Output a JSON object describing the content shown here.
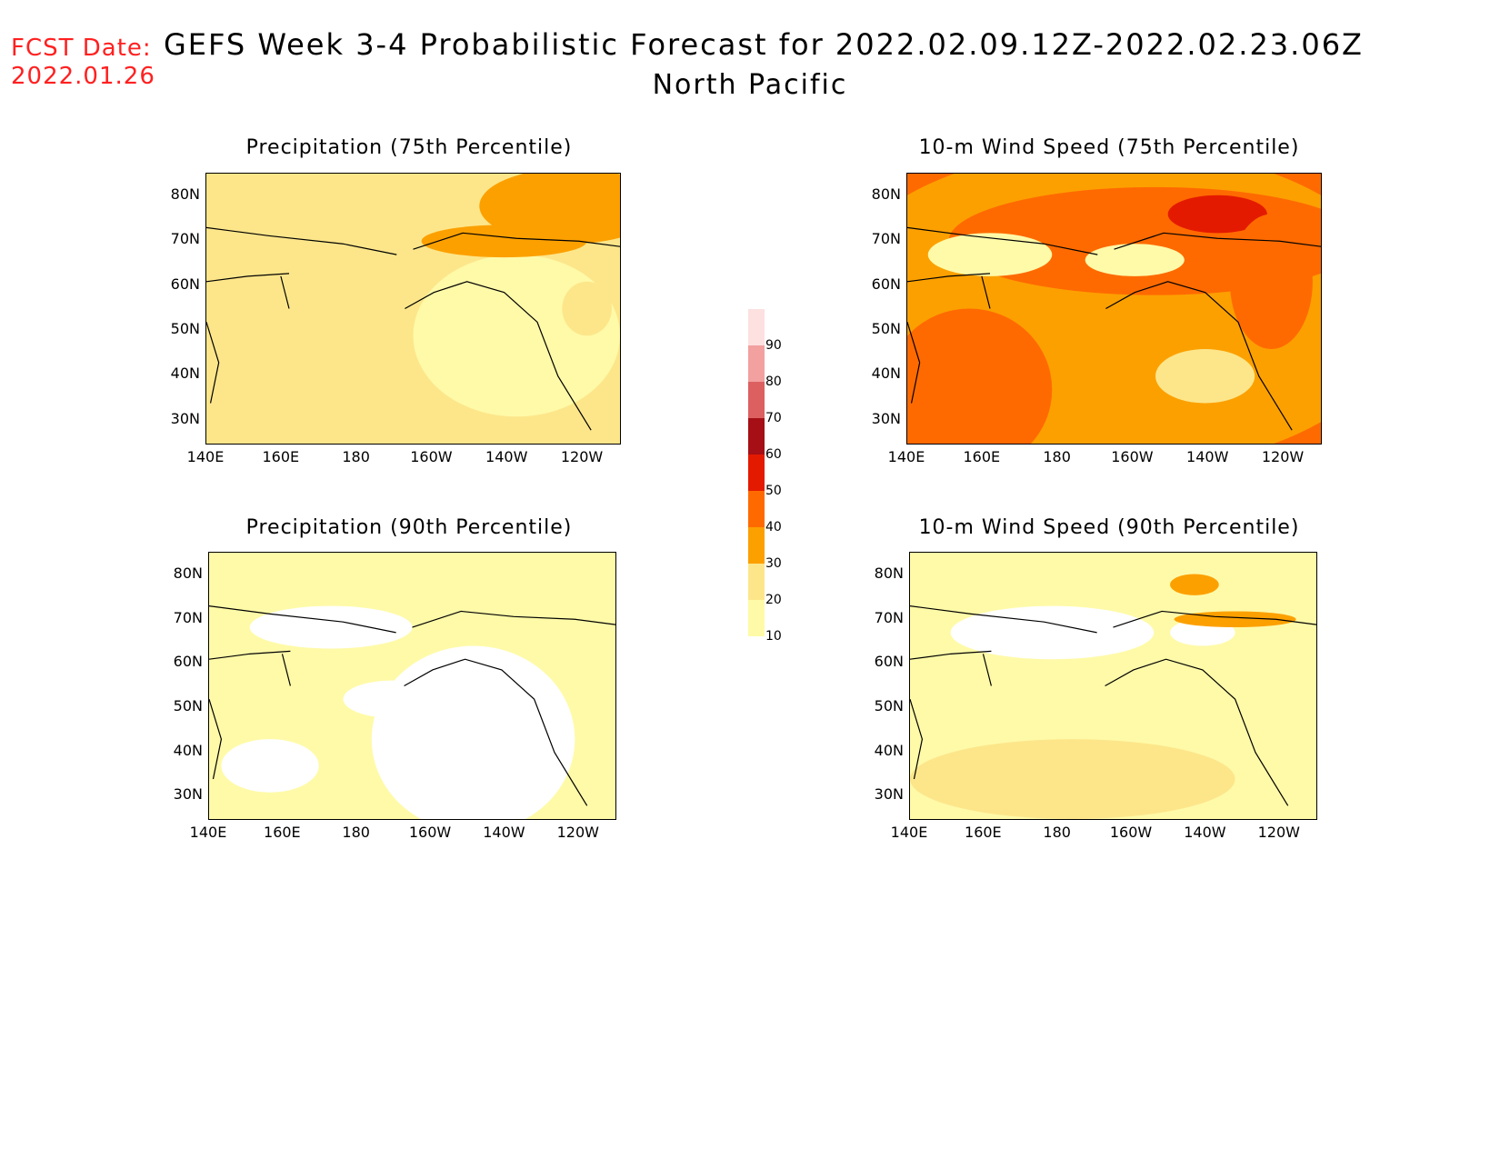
{
  "header": {
    "fcst_label": "FCST Date:",
    "fcst_date": "2022.01.26",
    "title": "GEFS Week 3-4 Probabilistic Forecast for 2022.02.09.12Z-2022.02.23.06Z",
    "subtitle": "North Pacific"
  },
  "panels": [
    {
      "id": "p75",
      "title": "Precipitation (75th Percentile)",
      "dominant": "#fde68a"
    },
    {
      "id": "w75",
      "title": "10-m Wind Speed (75th Percentile)",
      "dominant": "#ff6a00"
    },
    {
      "id": "p90",
      "title": "Precipitation (90th Percentile)",
      "dominant": "#fffaa8"
    },
    {
      "id": "w90",
      "title": "10-m Wind Speed (90th Percentile)",
      "dominant": "#fffaa8"
    }
  ],
  "axes": {
    "lat_labels": [
      "80N",
      "70N",
      "60N",
      "50N",
      "40N",
      "30N"
    ],
    "lon_labels": [
      "140E",
      "160E",
      "180",
      "160W",
      "140W",
      "120W"
    ]
  },
  "colorbar": {
    "levels": [
      "10",
      "20",
      "30",
      "40",
      "50",
      "60",
      "70",
      "80",
      "90"
    ],
    "colors": [
      "#fffaa8",
      "#fde68a",
      "#fca000",
      "#ff6a00",
      "#e41a00",
      "#a50f15",
      "#dc6060",
      "#f2a0a0",
      "#fde0e0"
    ]
  }
}
